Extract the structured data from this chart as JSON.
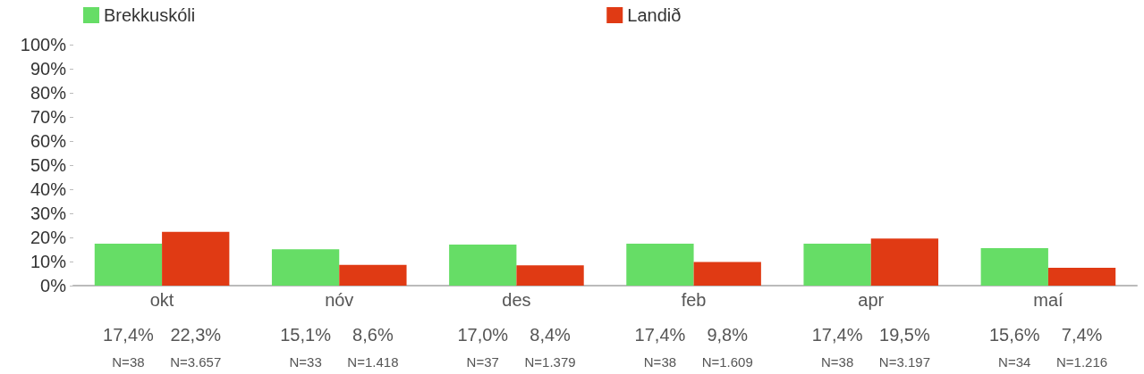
{
  "chart_data": {
    "type": "bar",
    "categories": [
      "okt",
      "nóv",
      "des",
      "feb",
      "apr",
      "maí"
    ],
    "series": [
      {
        "name": "Brekkuskóli",
        "color": "#66dd66",
        "values": [
          17.4,
          15.1,
          17.0,
          17.4,
          17.4,
          15.6
        ],
        "value_labels": [
          "17,4%",
          "15,1%",
          "17,0%",
          "17,4%",
          "17,4%",
          "15,6%"
        ]
      },
      {
        "name": "Landið",
        "color": "#e03a14",
        "values": [
          22.3,
          8.6,
          8.4,
          9.8,
          19.5,
          7.4
        ],
        "value_labels": [
          "22,3%",
          "8,6%",
          "8,4%",
          "9,8%",
          "19,5%",
          "7,4%"
        ]
      }
    ],
    "ylim": [
      0,
      100
    ],
    "yticks": [
      {
        "value": 0,
        "label": "0%"
      },
      {
        "value": 10,
        "label": "10%"
      },
      {
        "value": 20,
        "label": "20%"
      },
      {
        "value": 30,
        "label": "30%"
      },
      {
        "value": 40,
        "label": "40%"
      },
      {
        "value": 50,
        "label": "50%"
      },
      {
        "value": 60,
        "label": "60%"
      },
      {
        "value": 70,
        "label": "70%"
      },
      {
        "value": 80,
        "label": "80%"
      },
      {
        "value": 90,
        "label": "90%"
      },
      {
        "value": 100,
        "label": "100%"
      }
    ],
    "annotations": [
      "N=38",
      "N=3.657",
      "N=33",
      "N=1.418",
      "N=37",
      "N=1.379",
      "N=38",
      "N=1.609",
      "N=38",
      "N=3.197",
      "N=34",
      "N=1.216"
    ],
    "grid": false,
    "legend": "top"
  }
}
